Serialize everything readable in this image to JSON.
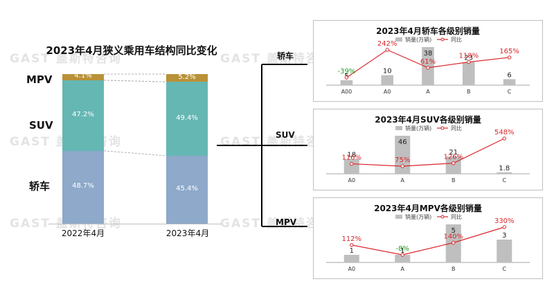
{
  "watermark": "GAST 盖斯特咨询",
  "chart_data": [
    {
      "type": "bar",
      "stacked": true,
      "normalized": true,
      "title": "2023年4月狭义乘用车结构同比变化",
      "categories": [
        "2022年4月",
        "2023年4月"
      ],
      "series": [
        {
          "name": "轿车",
          "values": [
            48.7,
            45.4
          ],
          "labels": [
            "48.7%",
            "45.4%"
          ],
          "color": "#8ea9c9"
        },
        {
          "name": "SUV",
          "values": [
            47.2,
            49.4
          ],
          "labels": [
            "47.2%",
            "49.4%"
          ],
          "color": "#65b7b3"
        },
        {
          "name": "MPV",
          "values": [
            4.1,
            5.2
          ],
          "labels": [
            "4.1%",
            "5.2%"
          ],
          "color": "#b99138"
        }
      ]
    },
    {
      "type": "bar+line",
      "title": "2023年4月轿车各级别销量",
      "category_label": "轿车",
      "legend": {
        "bar": "销量(万辆)",
        "line": "同比"
      },
      "categories": [
        "A00",
        "A0",
        "A",
        "B",
        "C"
      ],
      "bar_values": [
        5,
        10,
        38,
        23,
        6
      ],
      "line_values": [
        -39,
        242,
        61,
        118,
        165
      ],
      "line_labels": [
        "-39%",
        "242%",
        "61%",
        "118%",
        "165%"
      ]
    },
    {
      "type": "bar+line",
      "title": "2023年4月SUV各级别销量",
      "category_label": "SUV",
      "legend": {
        "bar": "销量(万辆)",
        "line": "同比"
      },
      "categories": [
        "A0",
        "A",
        "B",
        "C"
      ],
      "bar_values": [
        18,
        46,
        21,
        1.8
      ],
      "line_values": [
        116,
        75,
        126,
        548
      ],
      "line_labels": [
        "116%",
        "75%",
        "126%",
        "548%"
      ]
    },
    {
      "type": "bar+line",
      "title": "2023年4月MPV各级别销量",
      "category_label": "MPV",
      "legend": {
        "bar": "销量(万辆)",
        "line": "同比"
      },
      "categories": [
        "A0",
        "A",
        "B",
        "C"
      ],
      "bar_values": [
        1,
        1,
        5,
        3
      ],
      "line_values": [
        112,
        -8,
        140,
        330
      ],
      "line_labels": [
        "112%",
        "-8%",
        "140%",
        "330%"
      ]
    }
  ],
  "colors": {
    "bar_gray": "#bfbfbf",
    "line_red": "#d9262b",
    "pos_label": "#d9262b",
    "neg_label": "#1e9e1e",
    "axis": "#a6a6a6",
    "bracket": "#000000"
  }
}
